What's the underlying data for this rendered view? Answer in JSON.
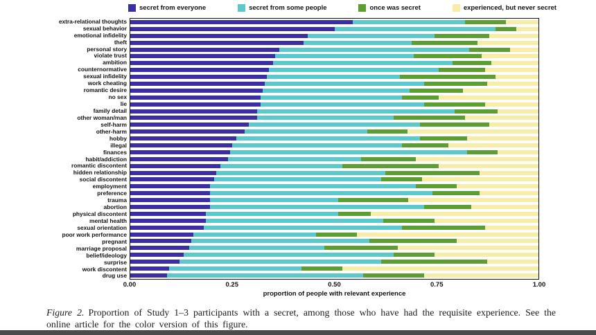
{
  "legend": {
    "items": [
      {
        "label": "secret from everyone",
        "color": "#3B2DA3"
      },
      {
        "label": "secret from some people",
        "color": "#5BC8CC"
      },
      {
        "label": "once was secret",
        "color": "#5C9E32"
      },
      {
        "label": "experienced, but never secret",
        "color": "#F8ECA9"
      }
    ]
  },
  "chart_data": {
    "type": "bar",
    "orientation": "horizontal",
    "stacked": true,
    "title": "",
    "xlabel": "proportion of people with relevant experience",
    "ylabel": "",
    "xlim": [
      0,
      1
    ],
    "x_ticks": [
      "0.00",
      "0.25",
      "0.50",
      "0.75",
      "1.00"
    ],
    "grid": false,
    "legend_position": "top",
    "categories": [
      "extra-relational thoughts",
      "sexual behavior",
      "emotional infidelity",
      "theft",
      "personal story",
      "violate trust",
      "ambition",
      "counternormative",
      "sexual infidelity",
      "work cheating",
      "romantic desire",
      "no sex",
      "lie",
      "family detail",
      "other woman/man",
      "self-harm",
      "other-harm",
      "hobby",
      "illegal",
      "finances",
      "habit/addiction",
      "romantic discontent",
      "hidden relationship",
      "social discontent",
      "employment",
      "preference",
      "trauma",
      "abortion",
      "physical discontent",
      "mental health",
      "sexual orientation",
      "poor work performance",
      "pregnant",
      "marriage proposal",
      "belief/ideology",
      "surprise",
      "work discontent",
      "drug use"
    ],
    "series": [
      {
        "name": "secret from everyone",
        "color": "#3B2DA3",
        "values": [
          0.545,
          0.5,
          0.435,
          0.425,
          0.365,
          0.355,
          0.35,
          0.34,
          0.335,
          0.33,
          0.325,
          0.32,
          0.32,
          0.31,
          0.31,
          0.29,
          0.28,
          0.26,
          0.25,
          0.245,
          0.24,
          0.22,
          0.21,
          0.205,
          0.195,
          0.195,
          0.195,
          0.195,
          0.185,
          0.185,
          0.18,
          0.155,
          0.15,
          0.145,
          0.13,
          0.12,
          0.095,
          0.09
        ]
      },
      {
        "name": "secret from some people",
        "color": "#5BC8CC",
        "values": [
          0.275,
          0.395,
          0.31,
          0.265,
          0.465,
          0.34,
          0.44,
          0.415,
          0.325,
          0.39,
          0.36,
          0.345,
          0.4,
          0.485,
          0.335,
          0.42,
          0.3,
          0.45,
          0.415,
          0.58,
          0.325,
          0.3,
          0.415,
          0.41,
          0.505,
          0.545,
          0.315,
          0.525,
          0.325,
          0.435,
          0.485,
          0.3,
          0.435,
          0.33,
          0.515,
          0.495,
          0.325,
          0.48
        ]
      },
      {
        "name": "once was secret",
        "color": "#5C9E32",
        "values": [
          0.1,
          0.05,
          0.135,
          0.16,
          0.1,
          0.165,
          0.095,
          0.115,
          0.235,
          0.155,
          0.13,
          0.09,
          0.15,
          0.105,
          0.175,
          0.17,
          0.1,
          0.115,
          0.115,
          0.075,
          0.135,
          0.235,
          0.23,
          0.1,
          0.1,
          0.115,
          0.17,
          0.115,
          0.08,
          0.125,
          0.205,
          0.1,
          0.215,
          0.18,
          0.1,
          0.26,
          0.1,
          0.15
        ]
      },
      {
        "name": "experienced, but never secret",
        "color": "#F8ECA9",
        "values": [
          0.08,
          0.055,
          0.12,
          0.15,
          0.07,
          0.14,
          0.115,
          0.13,
          0.105,
          0.125,
          0.185,
          0.245,
          0.13,
          0.1,
          0.18,
          0.12,
          0.32,
          0.175,
          0.22,
          0.1,
          0.3,
          0.245,
          0.145,
          0.285,
          0.2,
          0.145,
          0.32,
          0.165,
          0.41,
          0.255,
          0.13,
          0.445,
          0.2,
          0.345,
          0.255,
          0.125,
          0.48,
          0.28
        ]
      }
    ]
  },
  "caption": {
    "label": "Figure 2.",
    "text": "Proportion of Study 1–3 participants with a secret, among those who have had the requisite experience. See the online article for the color version of this figure."
  },
  "colors": {
    "plot_border": "#111111",
    "text": "#111111",
    "bottom_bar": "#4b4b4b",
    "background": "#ffffff"
  }
}
